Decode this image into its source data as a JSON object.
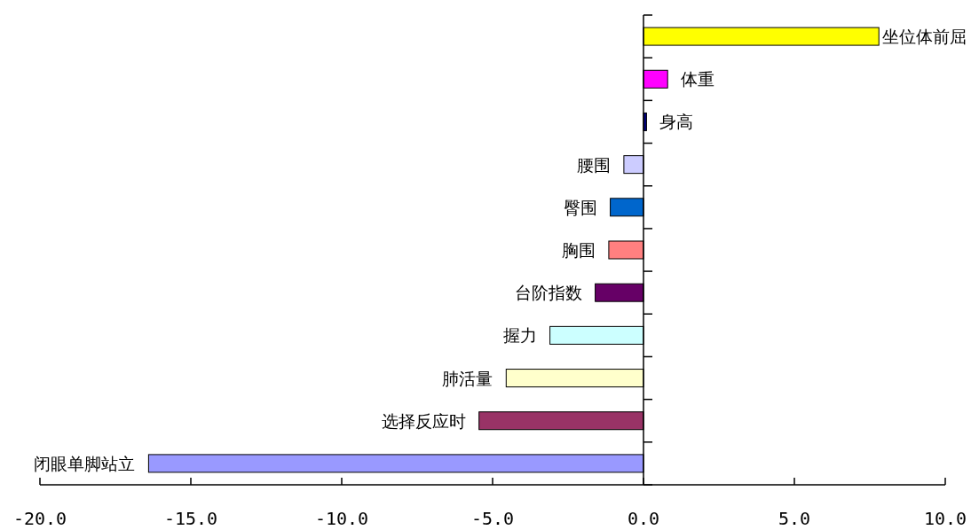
{
  "chart_data": {
    "type": "bar",
    "orientation": "horizontal",
    "categories": [
      "坐位体前屈",
      "体重",
      "身高",
      "腰围",
      "臀围",
      "胸围",
      "台阶指数",
      "握力",
      "肺活量",
      "选择反应时",
      "闭眼单脚站立"
    ],
    "values": [
      7.8,
      0.8,
      0.1,
      -0.65,
      -1.1,
      -1.15,
      -1.6,
      -3.1,
      -4.55,
      -5.45,
      -16.4
    ],
    "colors": [
      "#ffff00",
      "#ff00ff",
      "#000080",
      "#ccccff",
      "#0066cc",
      "#ff8080",
      "#660066",
      "#ccffff",
      "#ffffcc",
      "#993366",
      "#9999ff"
    ],
    "xlim": [
      -20,
      10
    ],
    "xticks": [
      {
        "value": -20,
        "label": "-20.0"
      },
      {
        "value": -15,
        "label": "-15.0"
      },
      {
        "value": -10,
        "label": "-10.0"
      },
      {
        "value": -5,
        "label": "-5.0"
      },
      {
        "value": 0,
        "label": "0.0"
      },
      {
        "value": 5,
        "label": "5.0"
      },
      {
        "value": 10,
        "label": "10.0"
      }
    ]
  }
}
